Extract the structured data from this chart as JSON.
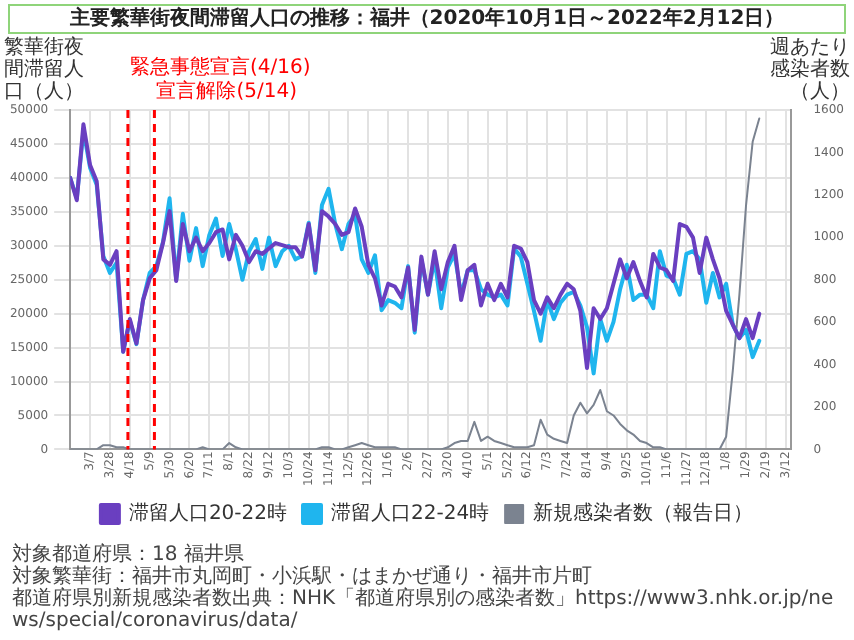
{
  "chart_data": {
    "type": "line",
    "title": "主要繁華街夜間滞留人口の推移：福井（2020年10月1日～2022年2月12日）",
    "ylabel": "繁華街夜間滞留人口（人）",
    "y2label": "週あたり感染者数（人）",
    "x": [
      "2020-02-15",
      "2020-02-22",
      "2020-02-29",
      "2020-03-07",
      "2020-03-14",
      "2020-03-21",
      "2020-03-28",
      "2020-04-04",
      "2020-04-11",
      "2020-04-18",
      "2020-04-25",
      "2020-05-02",
      "2020-05-09",
      "2020-05-16",
      "2020-05-23",
      "2020-05-30",
      "2020-06-06",
      "2020-06-13",
      "2020-06-20",
      "2020-06-27",
      "2020-07-04",
      "2020-07-11",
      "2020-07-18",
      "2020-07-25",
      "2020-08-01",
      "2020-08-08",
      "2020-08-15",
      "2020-08-22",
      "2020-08-29",
      "2020-09-05",
      "2020-09-12",
      "2020-09-19",
      "2020-09-26",
      "2020-10-03",
      "2020-10-10",
      "2020-10-17",
      "2020-10-24",
      "2020-10-31",
      "2020-11-07",
      "2020-11-14",
      "2020-11-21",
      "2020-11-28",
      "2020-12-05",
      "2020-12-12",
      "2020-12-19",
      "2020-12-26",
      "2021-01-02",
      "2021-01-09",
      "2021-01-16",
      "2021-01-23",
      "2021-01-30",
      "2021-02-06",
      "2021-02-13",
      "2021-02-20",
      "2021-02-27",
      "2021-03-06",
      "2021-03-13",
      "2021-03-20",
      "2021-03-27",
      "2021-04-03",
      "2021-04-10",
      "2021-04-17",
      "2021-04-24",
      "2021-05-01",
      "2021-05-08",
      "2021-05-15",
      "2021-05-22",
      "2021-05-29",
      "2021-06-05",
      "2021-06-12",
      "2021-06-19",
      "2021-06-26",
      "2021-07-03",
      "2021-07-10",
      "2021-07-17",
      "2021-07-24",
      "2021-07-31",
      "2021-08-07",
      "2021-08-14",
      "2021-08-21",
      "2021-08-28",
      "2021-09-04",
      "2021-09-11",
      "2021-09-18",
      "2021-09-25",
      "2021-10-02",
      "2021-10-09",
      "2021-10-16",
      "2021-10-23",
      "2021-10-30",
      "2021-11-06",
      "2021-11-13",
      "2021-11-20",
      "2021-11-27",
      "2021-12-04",
      "2021-12-11",
      "2021-12-18",
      "2021-12-25",
      "2022-01-01",
      "2022-01-08",
      "2022-01-15",
      "2022-01-22",
      "2022-01-29",
      "2022-02-05",
      "2022-02-12"
    ],
    "series": [
      {
        "name": "滞留人口20-22時",
        "color": "#6a3fc0",
        "values": [
          40000,
          36700,
          47900,
          41900,
          39500,
          28000,
          27200,
          29200,
          14400,
          19200,
          15600,
          22000,
          25200,
          26400,
          30400,
          35100,
          24800,
          33200,
          29200,
          31200,
          29200,
          30400,
          32000,
          32400,
          28000,
          31600,
          30000,
          27600,
          29200,
          28800,
          29600,
          30400,
          30100,
          29800,
          29800,
          28400,
          33200,
          26400,
          35100,
          34300,
          33200,
          31600,
          32000,
          35500,
          32800,
          27200,
          25200,
          21200,
          24400,
          24000,
          22400,
          26800,
          17600,
          28400,
          22800,
          29200,
          23600,
          27600,
          30000,
          22000,
          26400,
          27200,
          21200,
          24400,
          22000,
          24400,
          22400,
          30000,
          29600,
          27600,
          22000,
          20000,
          22400,
          20800,
          22800,
          24400,
          23600,
          20400,
          12000,
          20800,
          19200,
          20800,
          24400,
          28000,
          25200,
          27600,
          24800,
          22400,
          28800,
          26800,
          26400,
          24800,
          33200,
          32800,
          31200,
          26000,
          31200,
          28000,
          25200,
          20400,
          18400,
          16400,
          19200,
          16400,
          20000
        ]
      },
      {
        "name": "滞留人口22-24時",
        "color": "#1fb5ee",
        "values": [
          40000,
          37000,
          47000,
          41500,
          39000,
          28500,
          26000,
          27500,
          14400,
          19000,
          15500,
          22000,
          26000,
          27000,
          30500,
          37000,
          25000,
          34700,
          27800,
          32600,
          27000,
          31600,
          34000,
          28500,
          33200,
          29500,
          25000,
          29200,
          31000,
          26600,
          31200,
          27000,
          29200,
          30000,
          28000,
          28500,
          33400,
          26000,
          36000,
          38400,
          33200,
          29500,
          33200,
          34500,
          28000,
          26000,
          28600,
          20500,
          22000,
          21600,
          20800,
          27000,
          17200,
          28000,
          22800,
          28000,
          20800,
          26800,
          28800,
          22800,
          26400,
          26400,
          23600,
          22800,
          22400,
          22800,
          21200,
          29600,
          28400,
          24400,
          20400,
          16000,
          22000,
          19200,
          21600,
          22800,
          23200,
          21200,
          18000,
          11200,
          19200,
          16000,
          18800,
          23600,
          27200,
          22000,
          22800,
          22800,
          20800,
          29200,
          25600,
          25200,
          22800,
          28800,
          29200,
          28000,
          21600,
          26000,
          22400,
          24400,
          18400,
          16400,
          17600,
          13600,
          16000
        ]
      },
      {
        "name": "新規感染者数（報告日）",
        "color": "#7b8390",
        "axis": "y2",
        "values": [
          0,
          0,
          0,
          0,
          0,
          20,
          20,
          10,
          10,
          0,
          0,
          0,
          0,
          0,
          0,
          0,
          0,
          0,
          0,
          0,
          10,
          0,
          0,
          0,
          30,
          10,
          0,
          0,
          0,
          0,
          0,
          0,
          0,
          0,
          0,
          0,
          0,
          0,
          10,
          10,
          0,
          0,
          10,
          20,
          30,
          20,
          10,
          10,
          10,
          10,
          0,
          0,
          0,
          0,
          0,
          0,
          0,
          10,
          30,
          40,
          40,
          130,
          40,
          60,
          40,
          30,
          20,
          10,
          10,
          10,
          20,
          140,
          70,
          50,
          40,
          30,
          160,
          220,
          170,
          210,
          280,
          180,
          160,
          120,
          90,
          70,
          40,
          30,
          10,
          10,
          0,
          0,
          0,
          0,
          0,
          0,
          0,
          0,
          0,
          60,
          370,
          730,
          1150,
          1450,
          1560
        ]
      }
    ],
    "xlim": [
      "2020-02-15",
      "2022-03-18"
    ],
    "xticks": [
      {
        "value": "2020-03-07",
        "label": "3/7"
      },
      {
        "value": "2020-03-28",
        "label": "3/28"
      },
      {
        "value": "2020-04-18",
        "label": "4/18"
      },
      {
        "value": "2020-05-09",
        "label": "5/9"
      },
      {
        "value": "2020-05-30",
        "label": "5/30"
      },
      {
        "value": "2020-06-20",
        "label": "6/20"
      },
      {
        "value": "2020-07-11",
        "label": "7/11"
      },
      {
        "value": "2020-08-01",
        "label": "8/1"
      },
      {
        "value": "2020-08-22",
        "label": "8/22"
      },
      {
        "value": "2020-09-12",
        "label": "9/12"
      },
      {
        "value": "2020-10-03",
        "label": "10/3"
      },
      {
        "value": "2020-10-24",
        "label": "10/24"
      },
      {
        "value": "2020-11-14",
        "label": "11/14"
      },
      {
        "value": "2020-12-05",
        "label": "12/5"
      },
      {
        "value": "2020-12-26",
        "label": "12/26"
      },
      {
        "value": "2021-01-16",
        "label": "1/16"
      },
      {
        "value": "2021-02-06",
        "label": "2/6"
      },
      {
        "value": "2021-02-27",
        "label": "2/27"
      },
      {
        "value": "2021-03-20",
        "label": "3/20"
      },
      {
        "value": "2021-04-10",
        "label": "4/10"
      },
      {
        "value": "2021-05-01",
        "label": "5/1"
      },
      {
        "value": "2021-05-22",
        "label": "5/22"
      },
      {
        "value": "2021-06-12",
        "label": "6/12"
      },
      {
        "value": "2021-07-03",
        "label": "7/3"
      },
      {
        "value": "2021-07-24",
        "label": "7/24"
      },
      {
        "value": "2021-08-14",
        "label": "8/14"
      },
      {
        "value": "2021-09-04",
        "label": "9/4"
      },
      {
        "value": "2021-09-25",
        "label": "9/25"
      },
      {
        "value": "2021-10-16",
        "label": "10/16"
      },
      {
        "value": "2021-11-06",
        "label": "11/6"
      },
      {
        "value": "2021-11-27",
        "label": "11/27"
      },
      {
        "value": "2021-12-18",
        "label": "12/18"
      },
      {
        "value": "2022-01-08",
        "label": "1/8"
      },
      {
        "value": "2022-01-29",
        "label": "1/29"
      },
      {
        "value": "2022-02-19",
        "label": "2/19"
      },
      {
        "value": "2022-03-12",
        "label": "3/12"
      }
    ],
    "ylim": [
      0,
      50000
    ],
    "yticks": [
      0,
      5000,
      10000,
      15000,
      20000,
      25000,
      30000,
      35000,
      40000,
      45000,
      50000
    ],
    "y2lim": [
      0,
      1600
    ],
    "y2ticks": [
      0,
      200,
      400,
      600,
      800,
      1000,
      1200,
      1400,
      1600
    ],
    "ref_lines": [
      {
        "axis": "x",
        "value": "2020-04-16",
        "label": "緊急事態宣言(4/16)",
        "color": "#ff0000",
        "line_style": "dashed"
      },
      {
        "axis": "x",
        "value": "2020-05-14",
        "label": "宣言解除(5/14)",
        "color": "#ff0000",
        "line_style": "dashed"
      }
    ],
    "annotations": [
      "対象都道府県：18 福井県",
      "対象繁華街：福井市丸岡町・小浜駅・はまかぜ通り・福井市片町",
      "都道府県別新規感染者数出典：NHK「都道府県別の感染者数」https://www3.nhk.or.jp/news/special/coronavirus/data/"
    ],
    "grid": true,
    "legend": "bottom",
    "marker": "none",
    "line_style": "solid"
  }
}
